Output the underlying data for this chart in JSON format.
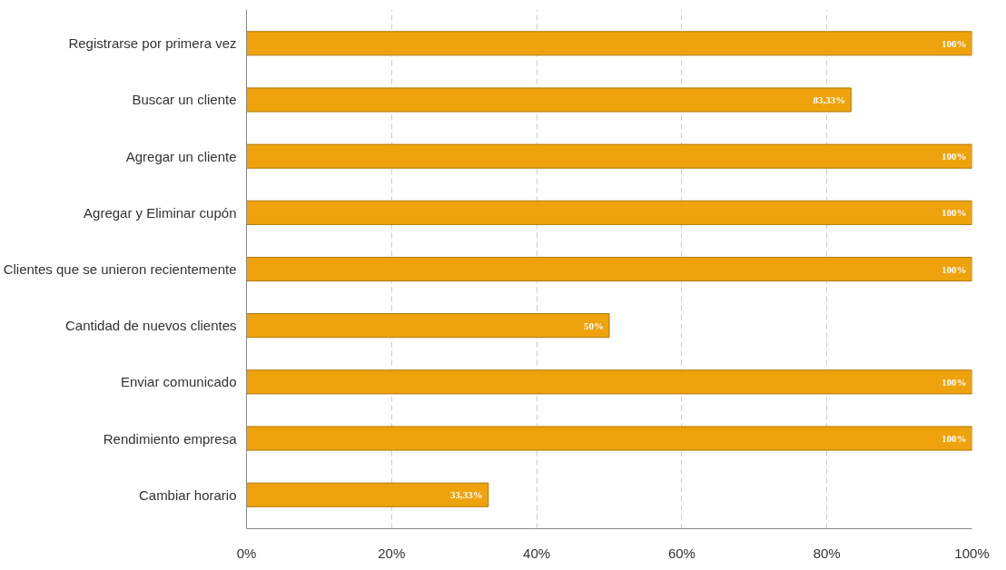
{
  "chart_data": {
    "type": "bar",
    "orientation": "horizontal",
    "categories": [
      "Registrarse por primera vez",
      "Buscar un cliente",
      "Agregar un cliente",
      "Agregar y Eliminar cupón",
      "Clientes que se unieron recientemente",
      "Cantidad de nuevos clientes",
      "Enviar comunicado",
      "Rendimiento empresa",
      "Cambiar horario"
    ],
    "values": [
      100,
      83.33,
      100,
      100,
      100,
      50,
      100,
      100,
      33.33
    ],
    "value_labels": [
      "100%",
      "83,33%",
      "100%",
      "100%",
      "100%",
      "50%",
      "100%",
      "100%",
      "33,33%"
    ],
    "color": "#eea20c",
    "xlim": [
      0,
      100
    ],
    "xticks": [
      {
        "value": 0,
        "label": "0%"
      },
      {
        "value": 20,
        "label": "20%"
      },
      {
        "value": 40,
        "label": "40%"
      },
      {
        "value": 60,
        "label": "60%"
      },
      {
        "value": 80,
        "label": "80%"
      },
      {
        "value": 100,
        "label": "100%"
      }
    ],
    "grid": "x"
  }
}
